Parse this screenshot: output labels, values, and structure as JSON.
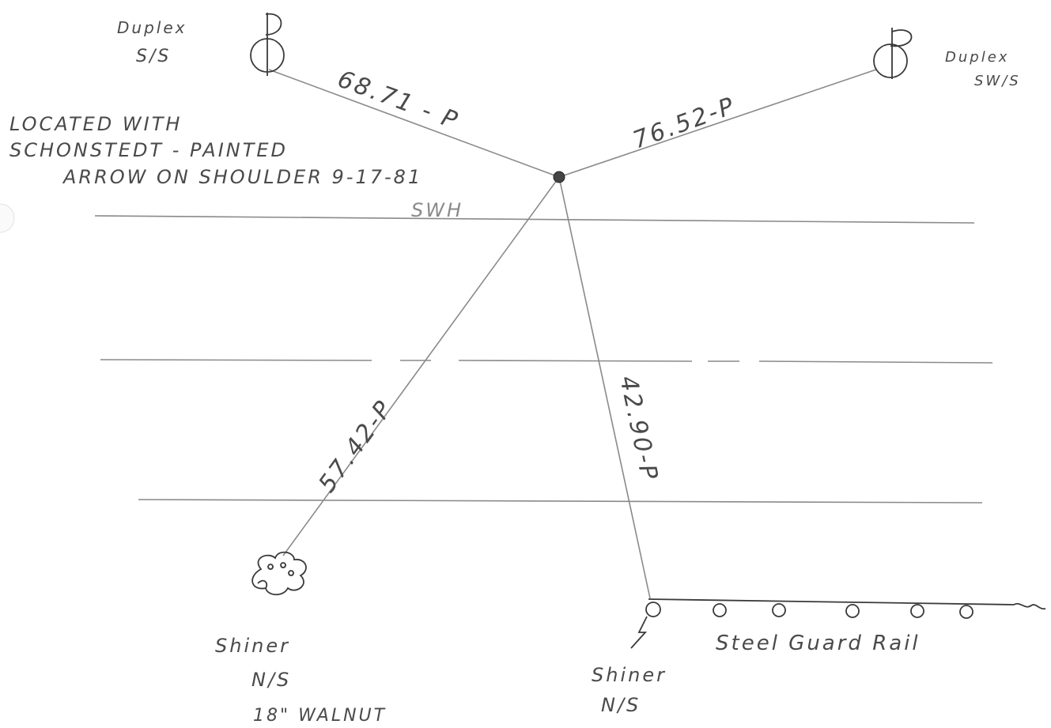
{
  "poles": [
    {
      "label": "Duplex",
      "side": "S/S"
    },
    {
      "label": "Duplex",
      "side": "SW/S"
    }
  ],
  "note": {
    "lines": [
      "LOCATED WITH",
      "SCHONSTEDT - PAINTED",
      "ARROW ON SHOULDER 9-17-81"
    ],
    "initials": "SWH"
  },
  "ties": [
    "68.71 - P",
    "76.52-P",
    "57.42-P",
    "42.90-P"
  ],
  "walnut": {
    "label": "Shiner",
    "side": "N/S",
    "description": "18\" WALNUT"
  },
  "rail_post": {
    "label": "Shiner",
    "side": "N/S"
  },
  "guard_rail": "Steel Guard Rail"
}
